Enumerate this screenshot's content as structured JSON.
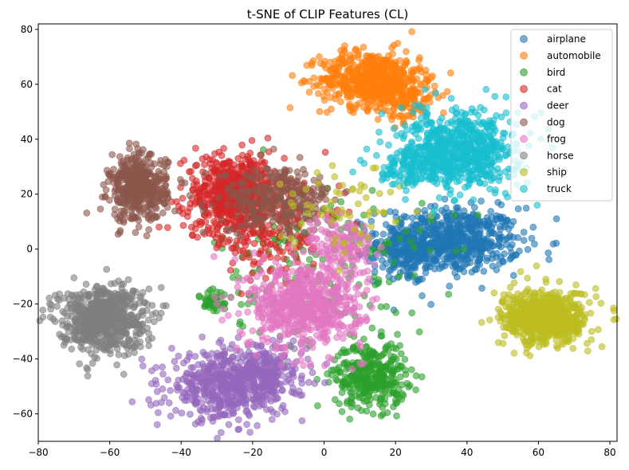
{
  "chart_data": {
    "type": "scatter",
    "title": "t-SNE of CLIP Features (CL)",
    "xlabel": "",
    "ylabel": "",
    "xlim": [
      -80,
      82
    ],
    "ylim": [
      -70,
      82
    ],
    "xticks": [
      -80,
      -60,
      -40,
      -20,
      0,
      20,
      40,
      60,
      80
    ],
    "yticks": [
      -60,
      -40,
      -20,
      0,
      20,
      40,
      60,
      80
    ],
    "xtick_labels": [
      "−80",
      "−60",
      "−40",
      "−20",
      "0",
      "20",
      "40",
      "60",
      "80"
    ],
    "ytick_labels": [
      "−60",
      "−40",
      "−20",
      "0",
      "20",
      "40",
      "60",
      "80"
    ],
    "grid": false,
    "legend_position": "top-right",
    "marker_alpha": 0.6,
    "series": [
      {
        "name": "airplane",
        "color": "#1f77b4",
        "clusters": [
          {
            "cx": 35,
            "cy": 3,
            "sx": 10,
            "sy": 6,
            "n": 650
          },
          {
            "cx": 22,
            "cy": -2,
            "sx": 4,
            "sy": 5,
            "n": 120
          }
        ]
      },
      {
        "name": "automobile",
        "color": "#ff7f0e",
        "clusters": [
          {
            "cx": 13,
            "cy": 62,
            "sx": 7,
            "sy": 5,
            "n": 550
          },
          {
            "cx": 22,
            "cy": 56,
            "sx": 5,
            "sy": 5,
            "n": 150
          }
        ]
      },
      {
        "name": "bird",
        "color": "#2ca02c",
        "clusters": [
          {
            "cx": 13,
            "cy": -46,
            "sx": 5,
            "sy": 6,
            "n": 350
          },
          {
            "cx": -31,
            "cy": -19,
            "sx": 2,
            "sy": 3,
            "n": 40
          },
          {
            "cx": 0,
            "cy": -5,
            "sx": 15,
            "sy": 15,
            "n": 180
          }
        ]
      },
      {
        "name": "cat",
        "color": "#d62728",
        "clusters": [
          {
            "cx": -25,
            "cy": 20,
            "sx": 7,
            "sy": 7,
            "n": 650
          },
          {
            "cx": -15,
            "cy": 5,
            "sx": 10,
            "sy": 8,
            "n": 150
          }
        ]
      },
      {
        "name": "deer",
        "color": "#9467bd",
        "clusters": [
          {
            "cx": -27,
            "cy": -50,
            "sx": 8,
            "sy": 6,
            "n": 550
          },
          {
            "cx": -15,
            "cy": -43,
            "sx": 6,
            "sy": 5,
            "n": 150
          }
        ]
      },
      {
        "name": "dog",
        "color": "#8c564b",
        "clusters": [
          {
            "cx": -52,
            "cy": 22,
            "sx": 4,
            "sy": 6,
            "n": 450
          },
          {
            "cx": -13,
            "cy": 18,
            "sx": 8,
            "sy": 6,
            "n": 300
          }
        ]
      },
      {
        "name": "frog",
        "color": "#e377c2",
        "clusters": [
          {
            "cx": -5,
            "cy": -20,
            "sx": 8,
            "sy": 8,
            "n": 650
          },
          {
            "cx": 5,
            "cy": 2,
            "sx": 5,
            "sy": 5,
            "n": 120
          }
        ]
      },
      {
        "name": "horse",
        "color": "#7f7f7f",
        "clusters": [
          {
            "cx": -62,
            "cy": -25,
            "sx": 6,
            "sy": 6,
            "n": 650
          }
        ]
      },
      {
        "name": "ship",
        "color": "#bcbd22",
        "clusters": [
          {
            "cx": 62,
            "cy": -25,
            "sx": 6,
            "sy": 5,
            "n": 650
          },
          {
            "cx": 5,
            "cy": 15,
            "sx": 8,
            "sy": 8,
            "n": 60
          }
        ]
      },
      {
        "name": "truck",
        "color": "#17becf",
        "clusters": [
          {
            "cx": 38,
            "cy": 36,
            "sx": 8,
            "sy": 7,
            "n": 650
          },
          {
            "cx": 25,
            "cy": 30,
            "sx": 6,
            "sy": 4,
            "n": 120
          }
        ]
      }
    ]
  }
}
